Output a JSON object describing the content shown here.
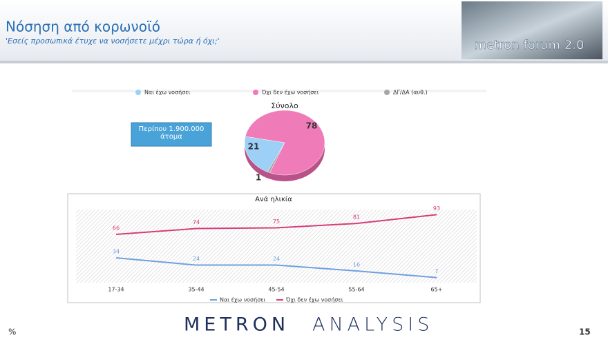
{
  "header": {
    "title": "Νόσηση από κορωνοϊό",
    "subtitle": "'Εσείς προσωπικά έτυχε να νοσήσετε μέχρι τώρα ή όχι;'",
    "logo": "metron forum 2.0"
  },
  "callout": "Περίπου 1.900.000 άτομα",
  "chart_data": [
    {
      "type": "pie",
      "title": "Σύνολο",
      "categories": [
        "Ναι έχω νοσήσει",
        "Όχι δεν έχω νοσήσει",
        "ΔΓ/ΔΑ (αυθ.)"
      ],
      "values": [
        21,
        78,
        1
      ],
      "colors": [
        "#9dd0f7",
        "#ef7bb8",
        "#a6a6a6"
      ]
    },
    {
      "type": "line",
      "title": "Ανά ηλικία",
      "categories": [
        "17-34",
        "35-44",
        "45-54",
        "55-64",
        "65+"
      ],
      "series": [
        {
          "name": "Ναι έχω νοσήσει",
          "color": "#6f9fe0",
          "values": [
            34,
            24,
            24,
            16,
            7
          ]
        },
        {
          "name": "Όχι δεν έχω νοσήσει",
          "color": "#d63c78",
          "values": [
            66,
            74,
            75,
            81,
            93
          ]
        }
      ],
      "ylim": [
        0,
        100
      ]
    }
  ],
  "footer": {
    "unit": "%",
    "brand_a": "METRON",
    "brand_b": "ANALYSIS",
    "page": "15"
  }
}
